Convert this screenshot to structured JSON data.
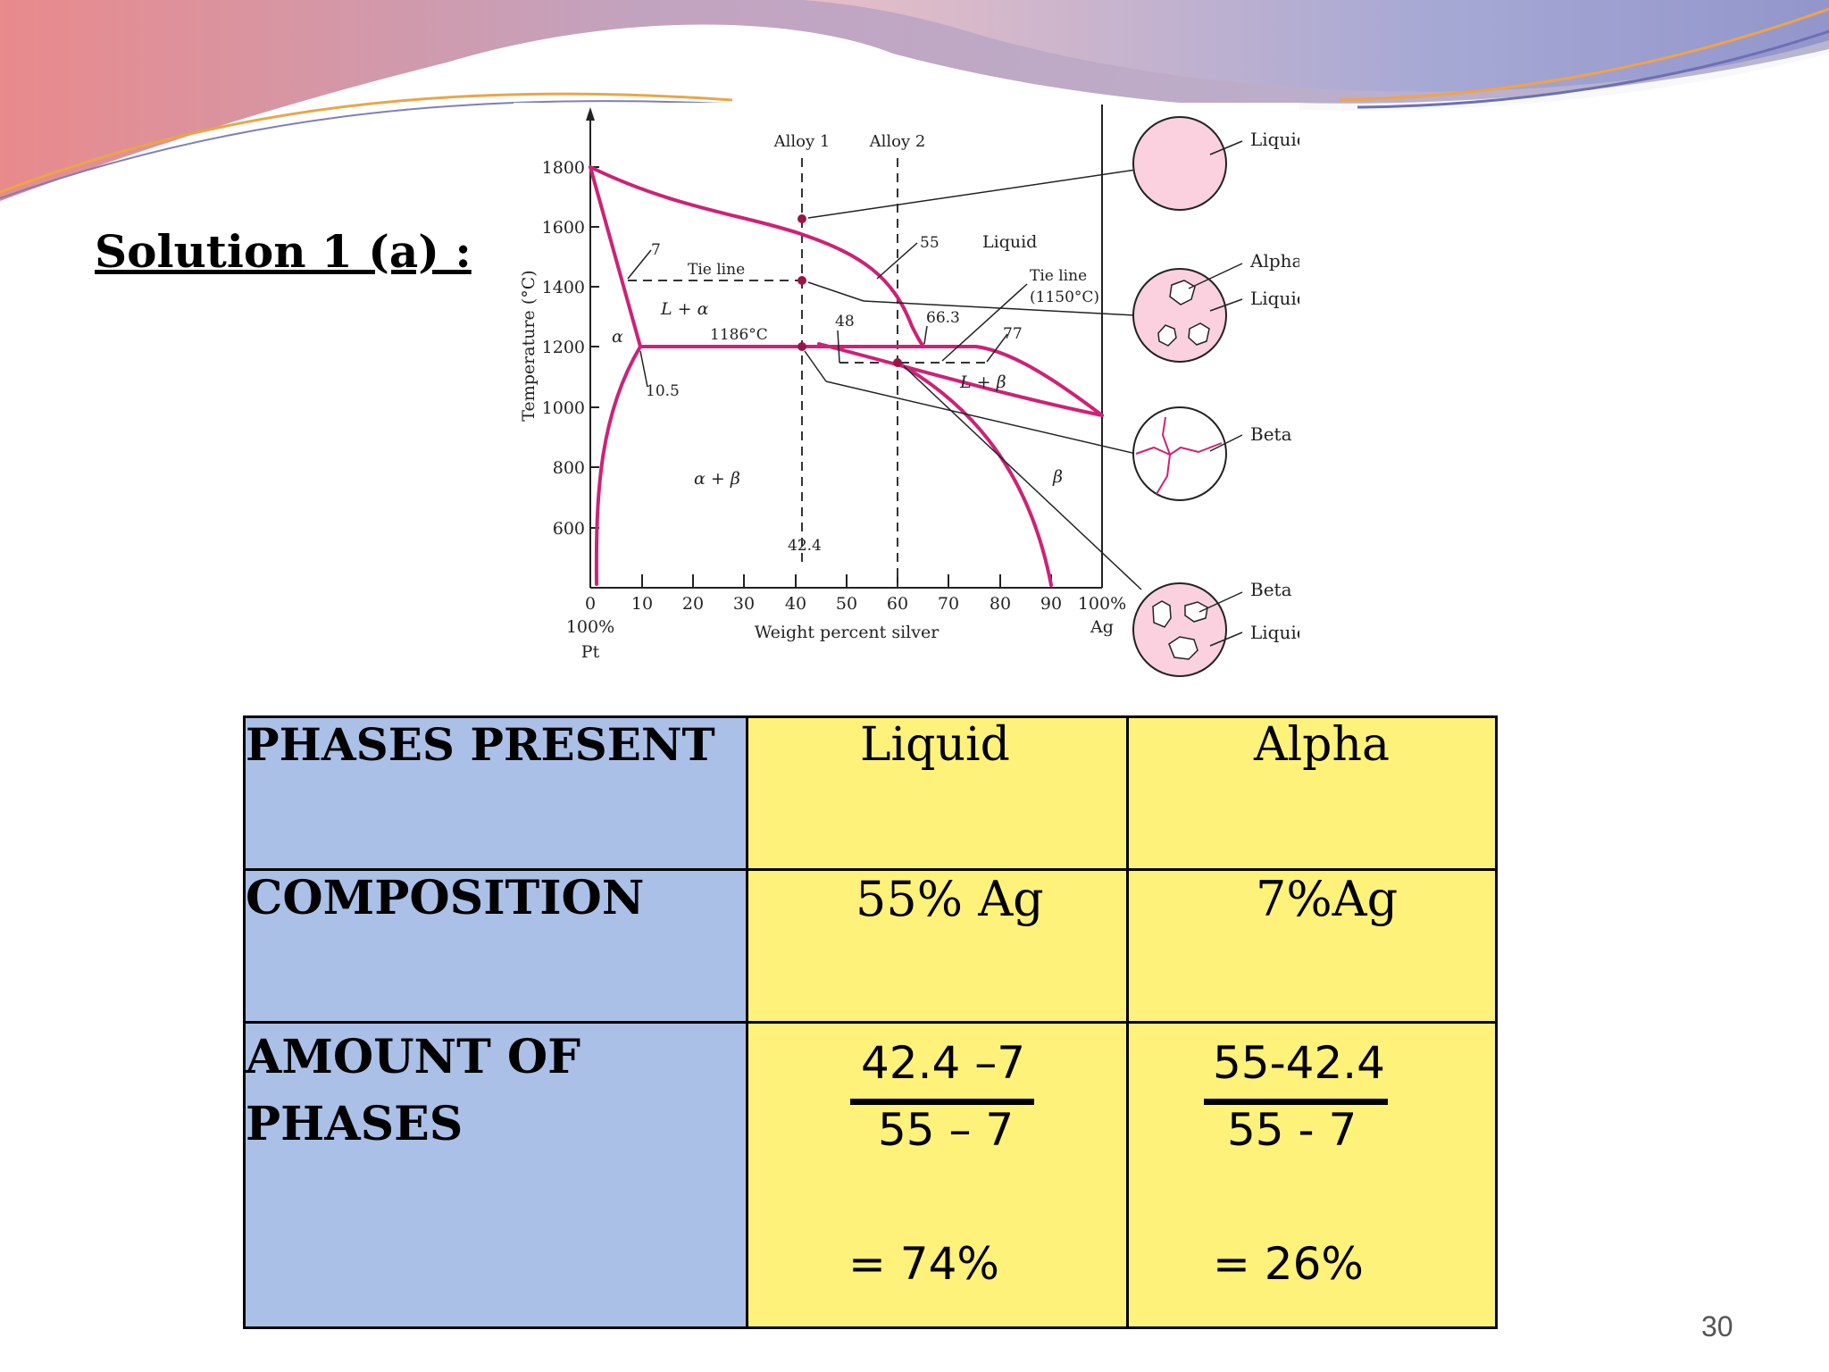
{
  "slide": {
    "title": "Solution 1  (a) :",
    "page_number": "30"
  },
  "diagram": {
    "y_axis_label": "Temperature (°C)",
    "x_axis_label": "Weight percent silver",
    "y_ticks": [
      "1800",
      "1600",
      "1400",
      "1200",
      "1000",
      "800",
      "600"
    ],
    "x_ticks": [
      "0",
      "10",
      "20",
      "30",
      "40",
      "50",
      "60",
      "70",
      "80",
      "90",
      "100%"
    ],
    "x_left_end": [
      "100%",
      "Pt"
    ],
    "x_right_end": "Ag",
    "alloy_labels": [
      "Alloy 1",
      "Alloy 2"
    ],
    "region_labels": {
      "liquid": "Liquid",
      "l_alpha": "L + α",
      "alpha": "α",
      "alpha_beta": "α + β",
      "l_beta": "L + β",
      "beta": "β"
    },
    "annotations": {
      "tie_line_1": "Tie line",
      "tie_line_2": "Tie line",
      "tie_line_2_temp": "(1150°C)",
      "peritectic_temp": "1186°C",
      "n7": "7",
      "n55": "55",
      "n48": "48",
      "n66_3": "66.3",
      "n77": "77",
      "n10_5": "10.5",
      "n42_4": "42.4"
    },
    "microstructures": [
      {
        "labels": [
          "Liquid"
        ]
      },
      {
        "labels": [
          "Alpha",
          "Liquid"
        ]
      },
      {
        "labels": [
          "Beta"
        ]
      },
      {
        "labels": [
          "Beta",
          "Liquid"
        ]
      }
    ],
    "colors": {
      "phase_line": "#cc2277",
      "circle_fill": "#fbd0df",
      "marker": "#9b1446"
    }
  },
  "table": {
    "header": {
      "label": "PHASES PRESENT",
      "col1": "Liquid",
      "col2": "Alpha"
    },
    "composition": {
      "label": "COMPOSITION",
      "col1": "55% Ag",
      "col2": "7%Ag"
    },
    "amount": {
      "label_line1": "AMOUNT OF",
      "label_line2": "PHASES",
      "col1": {
        "numerator": "42.4 –7",
        "denominator": "55 – 7",
        "result": "= 74%"
      },
      "col2": {
        "numerator": "55-42.4",
        "denominator": "55 - 7",
        "result": "= 26%"
      }
    },
    "colors": {
      "label_bg": "#abc0e7",
      "value_bg": "#fff27a"
    }
  }
}
